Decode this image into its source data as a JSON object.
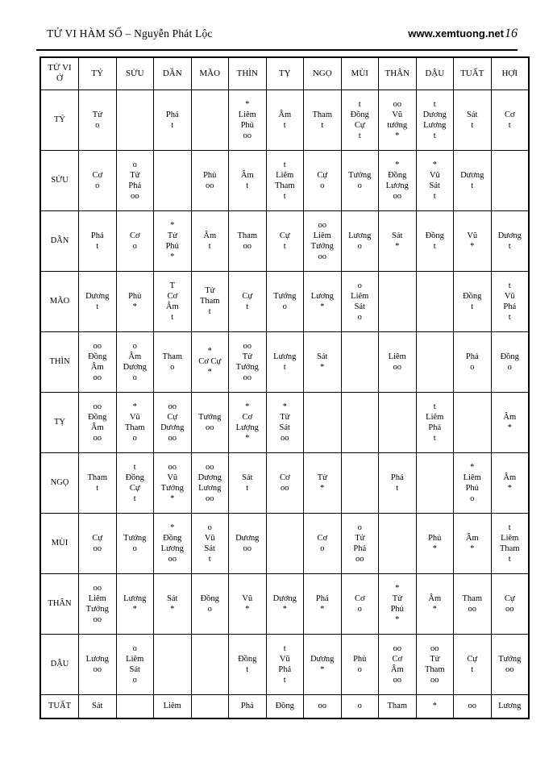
{
  "header": {
    "book_title": "TỬ VI HÀM SỐ – Nguyễn Phát Lộc",
    "website": "www.xemtuong.net",
    "page_number": "16"
  },
  "table": {
    "corner_label": "TỬ VI\nỞ",
    "column_headers": [
      "TÝ",
      "SỬU",
      "DẦN",
      "MÃO",
      "THÌN",
      "TỴ",
      "NGỌ",
      "MÙI",
      "THÂN",
      "DẬU",
      "TUẤT",
      "HỢI"
    ],
    "rows": [
      {
        "label": "TÝ",
        "cells": [
          "Tử\no",
          "",
          "Phá\nt",
          "",
          "*\nLiêm\nPhủ\noo",
          "Âm\nt",
          "Tham\nt",
          "t\nĐồng\nCự\nt",
          "oo\nVũ\ntướng\n*",
          "t\nDương\nLương\nt",
          "Sát\nt",
          "Cơ\nt"
        ]
      },
      {
        "label": "SỬU",
        "cells": [
          "Cơ\no",
          "o\nTử\nPhá\noo",
          "",
          "Phủ\noo",
          "Âm\nt",
          "t\nLiêm\nTham\nt",
          "Cự\no",
          "Tướng\no",
          "*\nĐồng\nLương\noo",
          "*\nVũ\nSát\nt",
          "Dương\nt",
          ""
        ]
      },
      {
        "label": "DẦN",
        "cells": [
          "Phá\nt",
          "Cơ\no",
          "*\nTử\nPhủ\n*",
          "Âm\nt",
          "Tham\noo",
          "Cự\nt",
          "oo\nLiêm\nTướng\noo",
          "Lương\no",
          "Sát\n*",
          "Đồng\nt",
          "Vũ\n*",
          "Dương\nt"
        ]
      },
      {
        "label": "MÃO",
        "cells": [
          "Dương\nt",
          "Phủ\n*",
          "T\nCơ\nÂm\nt",
          "Tử\nTham\nt",
          "Cự\nt",
          "Tướng\no",
          "Lương\n*",
          "o\nLiêm\nSát\no",
          "",
          "",
          "Đồng\nt",
          "t\nVũ\nPhá\nt"
        ]
      },
      {
        "label": "THÌN",
        "cells": [
          "oo\nĐồng\nÂm\noo",
          "o\nÂm\nDương\no",
          "Tham\no",
          "*\nCơ Cự\n*",
          "oo\nTử\nTướng\noo",
          "Lương\nt",
          "Sát\n*",
          "",
          "Liêm\noo",
          "",
          "Phá\no",
          "Đồng\no"
        ]
      },
      {
        "label": "TỴ",
        "cells": [
          "oo\nĐồng\nÂm\noo",
          "*\nVũ\nTham\no",
          "oo\nCự\nDương\noo",
          "Tướng\noo",
          "*\nCơ\nLượng\n*",
          "*\nTử\nSát\noo",
          "",
          "",
          "",
          "t\nLiêm\nPhá\nt",
          "",
          "Âm\n*"
        ]
      },
      {
        "label": "NGỌ",
        "cells": [
          "Tham\nt",
          "t\nĐồng\nCự\nt",
          "oo\nVũ\nTướng\n*",
          "oo\nDương\nLương\noo",
          "Sát\nt",
          "Cơ\noo",
          "Tử\n*",
          "",
          "Phá\nt",
          "",
          "*\nLiêm\nPhủ\no",
          "Âm\n*"
        ]
      },
      {
        "label": "MÙI",
        "cells": [
          "Cự\noo",
          "Tướng\no",
          "*\nĐồng\nLương\noo",
          "o\nVũ\nSát\nt",
          "Dương\noo",
          "",
          "Cơ\no",
          "o\nTử\nPhá\noo",
          "",
          "Phủ\n*",
          "Âm\n*",
          "t\nLiêm\nTham\nt"
        ]
      },
      {
        "label": "THÂN",
        "cells": [
          "oo\nLiêm\nTướng\noo",
          "Lương\n*",
          "Sát\n*",
          "Đồng\no",
          "Vũ\n*",
          "Dương\n*",
          "Phá\n*",
          "Cơ\no",
          "*\nTử\nPhủ\n*",
          "Âm\n*",
          "Tham\noo",
          "Cự\noo"
        ]
      },
      {
        "label": "DẬU",
        "cells": [
          "Lương\noo",
          "o\nLiêm\nSát\no",
          "",
          "",
          "Đồng\nt",
          "t\nVũ\nPhá\nt",
          "Dương\n*",
          "Phủ\no",
          "oo\nCơ\nÂm\noo",
          "oo\nTử\nTham\noo",
          "Cự\nt",
          "Tướng\noo"
        ]
      },
      {
        "label": "TUẤT",
        "cells": [
          "Sát",
          "",
          "Liêm",
          "",
          "Phá",
          "Đồng",
          "oo",
          "o",
          "Tham",
          "*",
          "oo",
          "Lương"
        ]
      }
    ]
  }
}
